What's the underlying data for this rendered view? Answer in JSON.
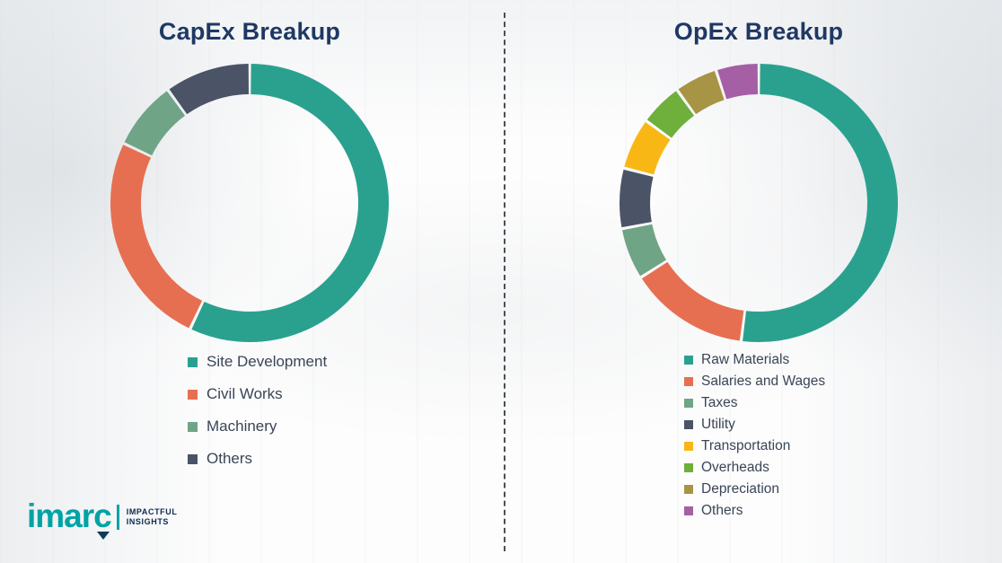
{
  "chart_data": [
    {
      "type": "pie",
      "variant": "donut",
      "title": "CapEx Breakup",
      "title_color": "#1F3864",
      "legend_position": "bottom",
      "series": [
        {
          "name": "Site Development",
          "value": 57,
          "color": "#2AA18F"
        },
        {
          "name": "Civil Works",
          "value": 25,
          "color": "#E76F51"
        },
        {
          "name": "Machinery",
          "value": 8,
          "color": "#6FA487"
        },
        {
          "name": "Others",
          "value": 10,
          "color": "#4B5367"
        }
      ]
    },
    {
      "type": "pie",
      "variant": "donut",
      "title": "OpEx Breakup",
      "title_color": "#1F3864",
      "legend_position": "bottom",
      "series": [
        {
          "name": "Raw Materials",
          "value": 52,
          "color": "#2AA18F"
        },
        {
          "name": "Salaries and Wages",
          "value": 14,
          "color": "#E76F51"
        },
        {
          "name": "Taxes",
          "value": 6,
          "color": "#6FA487"
        },
        {
          "name": "Utility",
          "value": 7,
          "color": "#4B5367"
        },
        {
          "name": "Transportation",
          "value": 6,
          "color": "#F9B716"
        },
        {
          "name": "Overheads",
          "value": 5,
          "color": "#6FB03C"
        },
        {
          "name": "Depreciation",
          "value": 5,
          "color": "#A89445"
        },
        {
          "name": "Others",
          "value": 5,
          "color": "#A55FA5"
        }
      ]
    }
  ],
  "logo": {
    "brand": "imarc",
    "brand_color": "#00A3A5",
    "tagline_line1": "IMPACTFUL",
    "tagline_line2": "INSIGHTS",
    "tagline_color": "#0E2B4E"
  }
}
